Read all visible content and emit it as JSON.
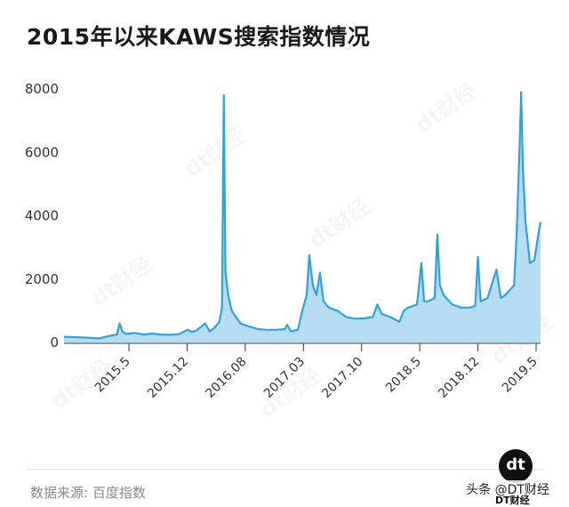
{
  "title": "2015年以来KAWS搜索指数情况",
  "source": "数据来源: 百度指数",
  "logo_text": "dt",
  "footer_credit": "头条 @DT财经",
  "footer_sub": "DT财经",
  "watermark_text": "dt财经",
  "colors": {
    "line": "#2fa3d6",
    "fill": "#b4dcf2",
    "axis": "#333333"
  },
  "chart_data": {
    "type": "area",
    "title": "2015年以来KAWS搜索指数情况",
    "xlabel": "",
    "ylabel": "",
    "ylim": [
      0,
      8000
    ],
    "yticks": [
      0,
      2000,
      4000,
      6000,
      8000
    ],
    "xticks": [
      "2015.5",
      "2015.12",
      "2016.08",
      "2017.03",
      "2017.10",
      "2018.5",
      "2018.12",
      "2019.5"
    ],
    "grid": false,
    "series": [
      {
        "name": "",
        "points": [
          [
            0,
            180
          ],
          [
            2,
            160
          ],
          [
            4,
            130
          ],
          [
            5,
            200
          ],
          [
            6,
            250
          ],
          [
            6.3,
            600
          ],
          [
            6.6,
            350
          ],
          [
            7,
            270
          ],
          [
            8,
            300
          ],
          [
            9,
            250
          ],
          [
            10,
            280
          ],
          [
            11,
            250
          ],
          [
            12,
            240
          ],
          [
            13,
            260
          ],
          [
            14,
            400
          ],
          [
            14.5,
            330
          ],
          [
            15,
            380
          ],
          [
            16,
            600
          ],
          [
            16.5,
            350
          ],
          [
            17,
            450
          ],
          [
            17.6,
            650
          ],
          [
            17.9,
            1100
          ],
          [
            18.1,
            7800
          ],
          [
            18.3,
            2200
          ],
          [
            18.6,
            1500
          ],
          [
            19,
            1000
          ],
          [
            20,
            600
          ],
          [
            21,
            500
          ],
          [
            22,
            420
          ],
          [
            23,
            400
          ],
          [
            24,
            400
          ],
          [
            25,
            420
          ],
          [
            25.3,
            560
          ],
          [
            25.7,
            350
          ],
          [
            26.5,
            400
          ],
          [
            27,
            1000
          ],
          [
            27.5,
            1500
          ],
          [
            27.8,
            2750
          ],
          [
            28.2,
            1800
          ],
          [
            28.6,
            1500
          ],
          [
            29,
            2200
          ],
          [
            29.4,
            1300
          ],
          [
            30,
            1100
          ],
          [
            31,
            1000
          ],
          [
            32,
            800
          ],
          [
            33,
            750
          ],
          [
            34,
            760
          ],
          [
            35,
            800
          ],
          [
            35.5,
            1200
          ],
          [
            36,
            900
          ],
          [
            37,
            800
          ],
          [
            38,
            650
          ],
          [
            38.5,
            1000
          ],
          [
            39,
            1100
          ],
          [
            40,
            1200
          ],
          [
            40.5,
            2500
          ],
          [
            40.8,
            1300
          ],
          [
            41.3,
            1300
          ],
          [
            42,
            1400
          ],
          [
            42.3,
            3400
          ],
          [
            42.6,
            1800
          ],
          [
            43,
            1500
          ],
          [
            44,
            1200
          ],
          [
            45,
            1100
          ],
          [
            46,
            1100
          ],
          [
            46.6,
            1150
          ],
          [
            46.9,
            2700
          ],
          [
            47.2,
            1300
          ],
          [
            48,
            1400
          ],
          [
            49,
            2300
          ],
          [
            49.5,
            1400
          ],
          [
            50,
            1500
          ],
          [
            51,
            1800
          ],
          [
            51.3,
            3500
          ],
          [
            51.6,
            6000
          ],
          [
            51.8,
            7900
          ],
          [
            52,
            5500
          ],
          [
            52.3,
            3800
          ],
          [
            52.8,
            2500
          ],
          [
            53.3,
            2600
          ],
          [
            53.8,
            3500
          ],
          [
            54,
            3800
          ]
        ]
      }
    ]
  }
}
